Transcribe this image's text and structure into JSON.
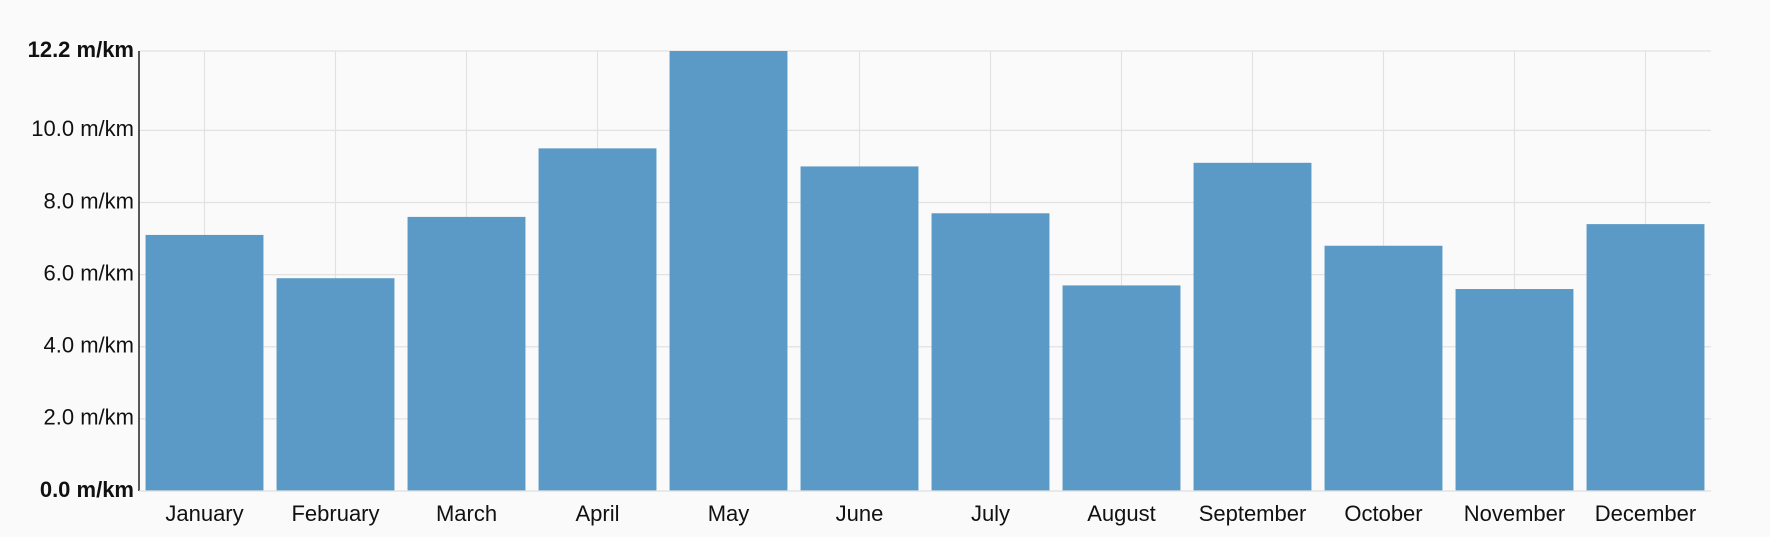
{
  "chart_data": {
    "type": "bar",
    "categories": [
      "January",
      "February",
      "March",
      "April",
      "May",
      "June",
      "July",
      "August",
      "September",
      "October",
      "November",
      "December"
    ],
    "values": [
      7.1,
      5.9,
      7.6,
      9.5,
      12.2,
      9.0,
      7.7,
      5.7,
      9.1,
      6.8,
      5.6,
      7.4
    ],
    "color": "#5b9ac6",
    "ylim": [
      0,
      12.2
    ],
    "yticks": [
      {
        "value": 0,
        "label": "0.0 m/km"
      },
      {
        "value": 2,
        "label": "2.0 m/km"
      },
      {
        "value": 4,
        "label": "4.0 m/km"
      },
      {
        "value": 6,
        "label": "6.0 m/km"
      },
      {
        "value": 8,
        "label": "8.0 m/km"
      },
      {
        "value": 10,
        "label": "10.0 m/km"
      },
      {
        "value": 12.2,
        "label": "12.2 m/km"
      }
    ],
    "grid": true
  }
}
